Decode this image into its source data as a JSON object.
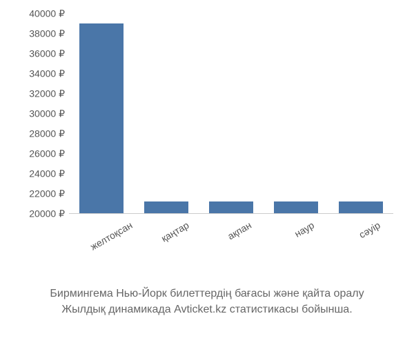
{
  "chart": {
    "type": "bar",
    "categories": [
      "желтоқсан",
      "қаңтар",
      "ақпан",
      "наур",
      "сәуір"
    ],
    "values": [
      39000,
      21200,
      21200,
      21200,
      21200
    ],
    "bar_color": "#4a76a8",
    "background_color": "#ffffff",
    "y_min": 20000,
    "y_max": 40000,
    "y_ticks": [
      20000,
      22000,
      24000,
      26000,
      28000,
      30000,
      32000,
      34000,
      36000,
      38000,
      40000
    ],
    "y_tick_labels": [
      "20000 ₽",
      "22000 ₽",
      "24000 ₽",
      "26000 ₽",
      "28000 ₽",
      "30000 ₽",
      "32000 ₽",
      "34000 ₽",
      "36000 ₽",
      "38000 ₽",
      "40000 ₽"
    ],
    "label_color": "#555555",
    "label_fontsize": 14,
    "bar_width": 0.68,
    "x_label_rotation": -30
  },
  "caption": {
    "line1": "Бирмингема Нью-Йорк билеттердің бағасы және қайта оралу",
    "line2": "Жылдық динамикада Avticket.kz статистикасы бойынша.",
    "color": "#666666",
    "fontsize": 16
  }
}
